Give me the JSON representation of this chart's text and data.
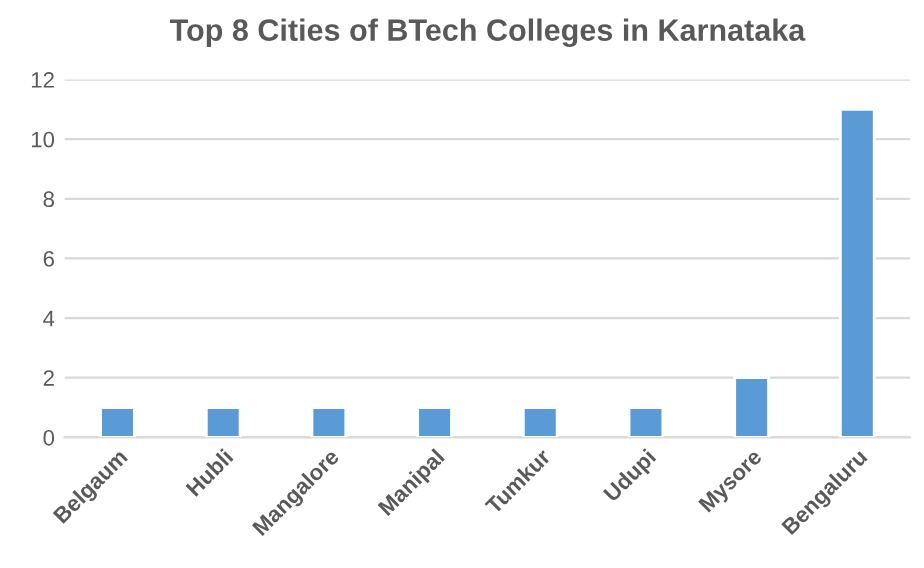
{
  "chart_data": {
    "type": "bar",
    "title": "Top 8 Cities of BTech Colleges in Karnataka",
    "categories": [
      "Belgaum",
      "Hubli",
      "Mangalore",
      "Manipal",
      "Tumkur",
      "Udupi",
      "Mysore",
      "Bengaluru"
    ],
    "values": [
      1,
      1,
      1,
      1,
      1,
      1,
      2,
      11
    ],
    "color": "#5b9bd5",
    "ylim": [
      0,
      12
    ],
    "yticks": [
      0,
      2,
      4,
      6,
      8,
      10,
      12
    ],
    "grid": "y"
  }
}
